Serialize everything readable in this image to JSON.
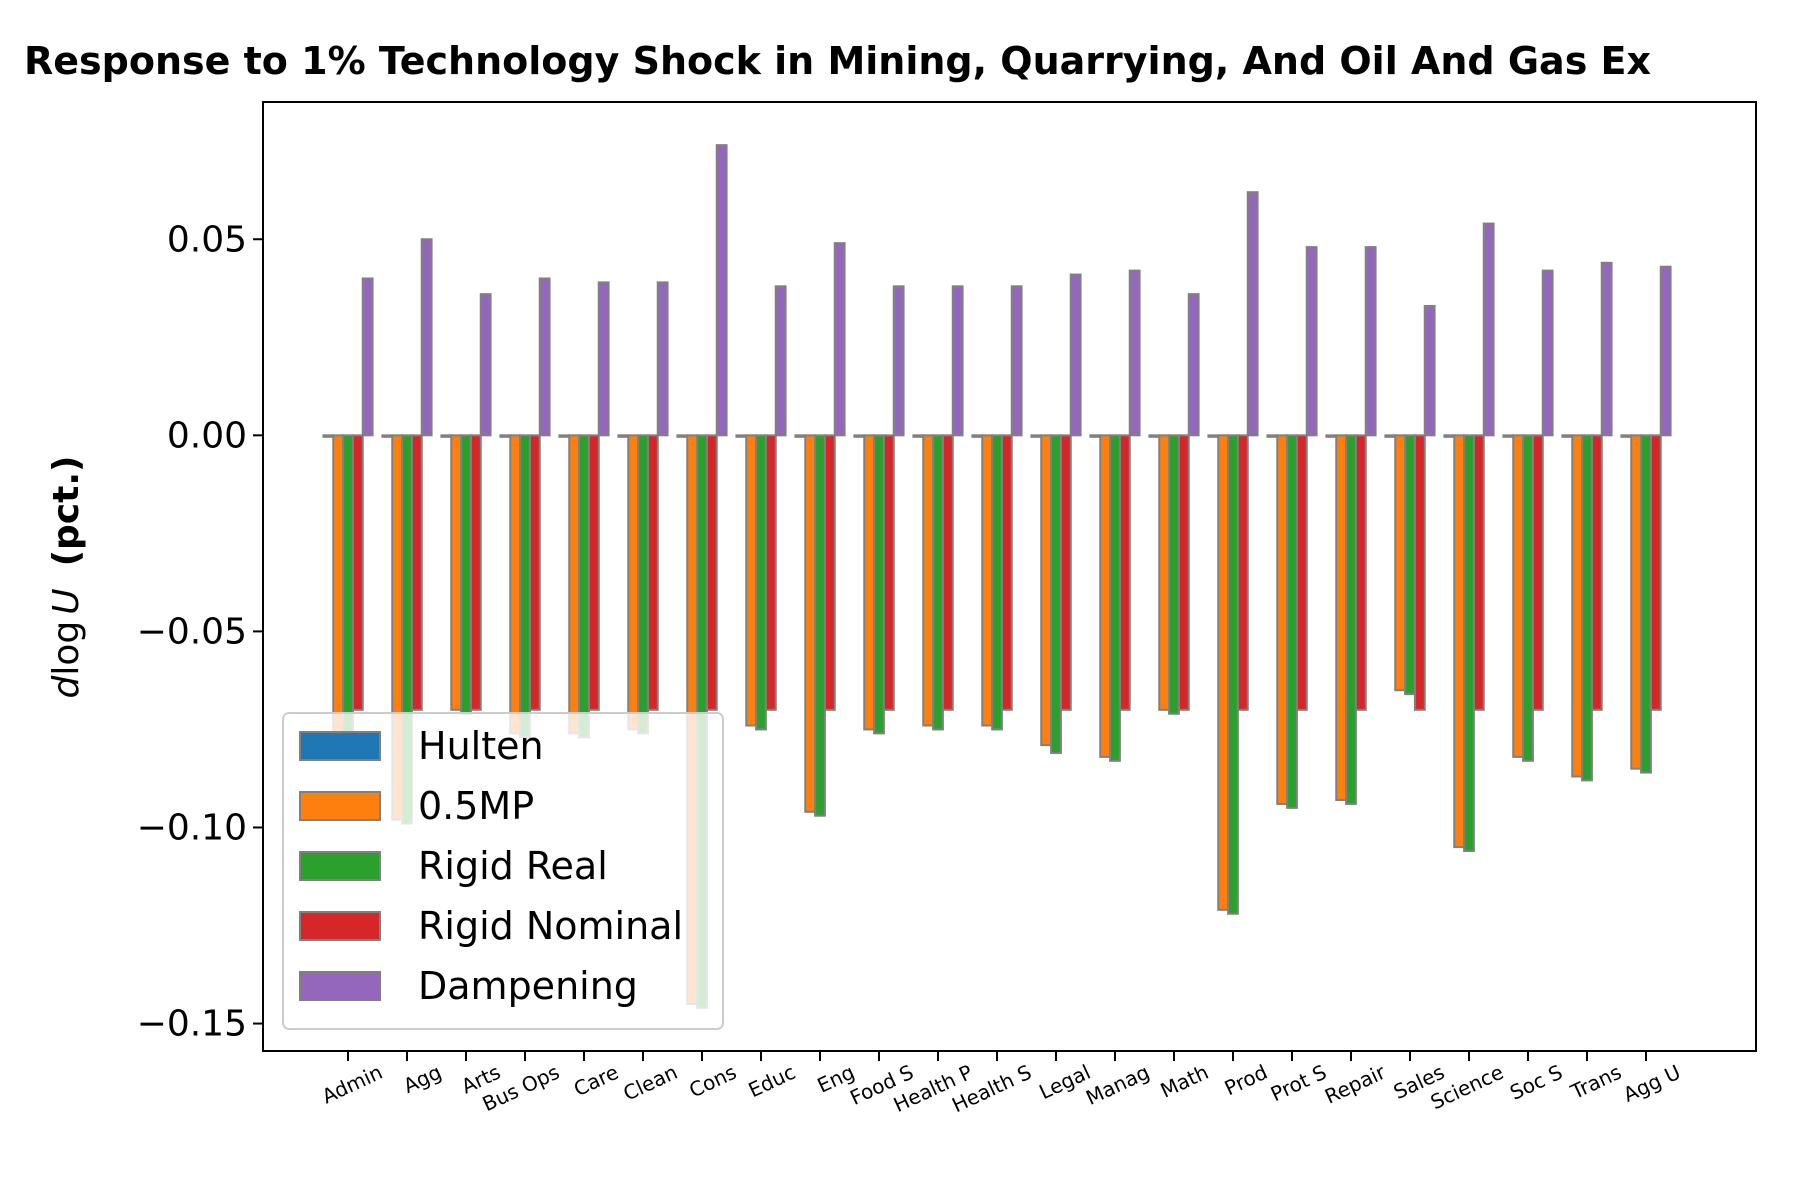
{
  "chart_data": {
    "type": "bar",
    "title": "Response to 1% Technology Shock in Mining, Quarrying, And Oil And Gas Ex",
    "ylabel_italic": "d",
    "ylabel_log": "log",
    "ylabel_var": "U",
    "ylabel_unit": "(pct.)",
    "xlabel": "",
    "ylim": [
      -0.157,
      0.085
    ],
    "yticks": [
      0.05,
      0.0,
      -0.05,
      -0.1,
      -0.15
    ],
    "ytick_labels": [
      "0.05",
      "0.00",
      "−0.05",
      "−0.10",
      "−0.15"
    ],
    "grid": false,
    "legend_position": "lower-left",
    "categories": [
      "Admin",
      "Agg",
      "Arts",
      "Bus Ops",
      "Care",
      "Clean",
      "Cons",
      "Educ",
      "Eng",
      "Food S",
      "Health P",
      "Health S",
      "Legal",
      "Manag",
      "Math",
      "Prod",
      "Prot S",
      "Repair",
      "Sales",
      "Science",
      "Soc S",
      "Trans",
      "Agg U"
    ],
    "series": [
      {
        "name": "Hulten",
        "color": "#1f77b4",
        "values": [
          0,
          0,
          0,
          0,
          0,
          0,
          0,
          0,
          0,
          0,
          0,
          0,
          0,
          0,
          0,
          0,
          0,
          0,
          0,
          0,
          0,
          0,
          0
        ]
      },
      {
        "name": "0.5MP",
        "color": "#ff7f0e",
        "values": [
          -0.076,
          -0.098,
          -0.07,
          -0.076,
          -0.076,
          -0.075,
          -0.145,
          -0.074,
          -0.096,
          -0.075,
          -0.074,
          -0.074,
          -0.079,
          -0.082,
          -0.07,
          -0.121,
          -0.094,
          -0.093,
          -0.065,
          -0.105,
          -0.082,
          -0.087,
          -0.085
        ]
      },
      {
        "name": "Rigid Real",
        "color": "#2ca02c",
        "values": [
          -0.077,
          -0.099,
          -0.071,
          -0.077,
          -0.077,
          -0.076,
          -0.146,
          -0.075,
          -0.097,
          -0.076,
          -0.075,
          -0.075,
          -0.081,
          -0.083,
          -0.071,
          -0.122,
          -0.095,
          -0.094,
          -0.066,
          -0.106,
          -0.083,
          -0.088,
          -0.086
        ]
      },
      {
        "name": "Rigid Nominal",
        "color": "#d62728",
        "values": [
          -0.07,
          -0.07,
          -0.07,
          -0.07,
          -0.07,
          -0.07,
          -0.07,
          -0.07,
          -0.07,
          -0.07,
          -0.07,
          -0.07,
          -0.07,
          -0.07,
          -0.07,
          -0.07,
          -0.07,
          -0.07,
          -0.07,
          -0.07,
          -0.07,
          -0.07,
          -0.07
        ]
      },
      {
        "name": "Dampening",
        "color": "#9467bd",
        "values": [
          0.04,
          0.05,
          0.036,
          0.04,
          0.039,
          0.039,
          0.074,
          0.038,
          0.049,
          0.038,
          0.038,
          0.038,
          0.041,
          0.042,
          0.036,
          0.062,
          0.048,
          0.048,
          0.033,
          0.054,
          0.042,
          0.044,
          0.043
        ]
      }
    ]
  }
}
